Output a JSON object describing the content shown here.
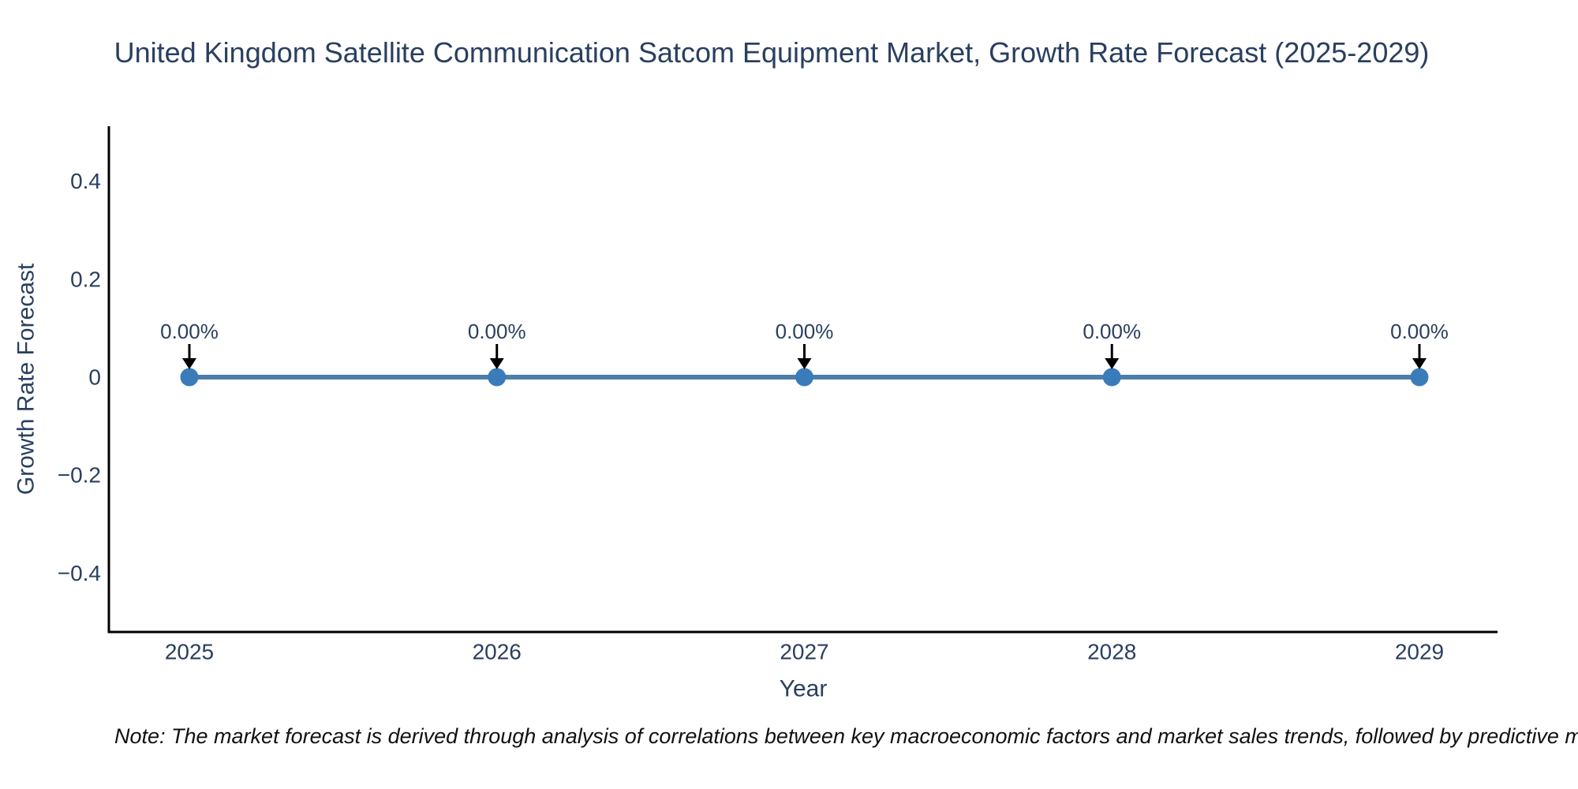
{
  "title": "United Kingdom Satellite Communication Satcom Equipment Market, Growth Rate Forecast (2025-2029)",
  "note": "Note: The market forecast is derived through analysis of correlations between key macroeconomic factors and market sales trends, followed by predictive modeling to project future sa",
  "colors": {
    "background": "#ffffff",
    "line": "#4d7ea8",
    "marker": "#3a7cba",
    "axis_line": "#000000",
    "chart_text": "#2a3f5f",
    "annotation_arrow": "#000000",
    "note_text": "#111111"
  },
  "chart_data": {
    "type": "line",
    "title": "United Kingdom Satellite Communication Satcom Equipment Market, Growth Rate Forecast (2025-2029)",
    "xlabel": "Year",
    "ylabel": "Growth Rate Forecast",
    "categories": [
      "2025",
      "2026",
      "2027",
      "2028",
      "2029"
    ],
    "series": [
      {
        "name": "Growth Rate Forecast",
        "values": [
          0,
          0,
          0,
          0,
          0
        ]
      }
    ],
    "point_labels": [
      "0.00%",
      "0.00%",
      "0.00%",
      "0.00%",
      "0.00%"
    ],
    "yticks": {
      "values": [
        0.4,
        0.2,
        0,
        -0.2,
        -0.4
      ],
      "labels": [
        "0.4",
        "0.2",
        "0",
        "−0.2",
        "−0.4"
      ]
    },
    "ylim": [
      -0.5,
      0.5
    ],
    "grid": false,
    "legend_position": "none",
    "annotation_style": "value labels with downward arrows pointing at each data point"
  }
}
